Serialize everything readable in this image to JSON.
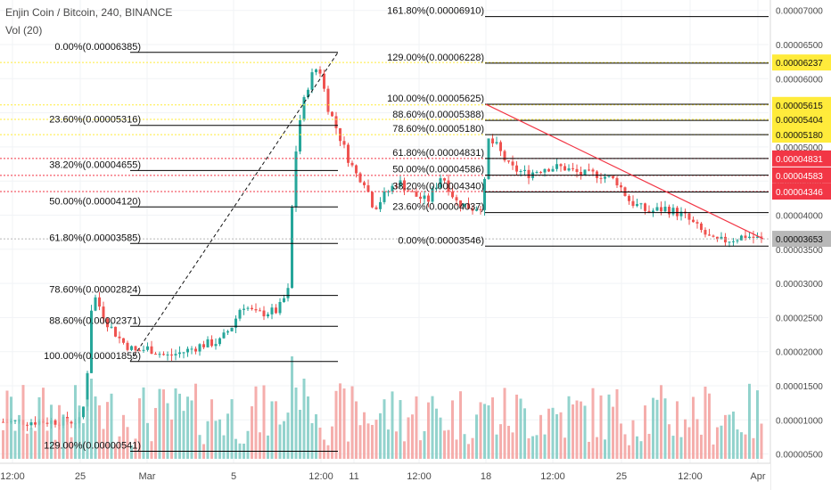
{
  "header": {
    "title": "Enjin Coin / Bitcoin, 240, BINANCE",
    "volume_label": "Vol (20)"
  },
  "chart_data": {
    "type": "candlestick",
    "symbol": "Enjin Coin / Bitcoin",
    "interval": "240",
    "exchange": "BINANCE",
    "ylim": [
      4.3e-06,
      7.2e-06
    ],
    "y_ticks": [
      5e-06,
      5.5e-06,
      6e-06,
      6.5e-06,
      7e-06,
      7.5e-06,
      8e-06,
      8.5e-06,
      9e-06,
      9.5e-06,
      1e-05,
      1.05e-05,
      1.1e-05,
      1.15e-05,
      1.2e-05,
      1.25e-05,
      1.3e-05,
      1.35e-05,
      1.4e-05,
      1.45e-05,
      1.5e-05,
      1.55e-05,
      1.6e-05,
      1.65e-05,
      1.7e-05,
      1.75e-05,
      1.8e-05,
      1.85e-05,
      1.9e-05,
      1.95e-05,
      2e-05,
      2.05e-05,
      2.1e-05,
      2.15e-05,
      2.2e-05,
      2.25e-05,
      2.3e-05,
      2.35e-05,
      2.4e-05,
      2.45e-05,
      2.5e-05,
      2.55e-05,
      2.6e-05,
      2.65e-05,
      2.7e-05,
      2.75e-05,
      2.8e-05,
      2.85e-05,
      2.9e-05,
      2.95e-05,
      3e-05,
      3.05e-05,
      3.1e-05,
      3.15e-05,
      3.2e-05,
      3.25e-05,
      3.3e-05,
      3.35e-05,
      3.4e-05,
      3.45e-05,
      3.5e-05,
      3.55e-05,
      3.6e-05,
      3.65e-05,
      3.7e-05,
      3.75e-05,
      3.8e-05,
      3.85e-05,
      3.9e-05,
      3.95e-05,
      4e-05,
      4.05e-05,
      4.1e-05,
      4.15e-05,
      4.2e-05,
      4.25e-05,
      4.3e-05,
      4.35e-05,
      4.4e-05,
      4.45e-05,
      4.5e-05,
      4.55e-05,
      4.6e-05,
      4.65e-05,
      4.7e-05,
      4.75e-05,
      4.8e-05,
      4.85e-05,
      4.9e-05,
      4.95e-05,
      5e-05,
      5.05e-05,
      5.1e-05,
      5.15e-05,
      5.2e-05,
      5.25e-05,
      5.3e-05,
      5.35e-05,
      5.4e-05,
      5.45e-05,
      5.5e-05,
      5.55e-05,
      5.6e-05,
      5.65e-05,
      5.7e-05,
      5.75e-05,
      5.8e-05,
      5.85e-05,
      5.9e-05,
      5.95e-05,
      6e-05,
      6.05e-05,
      6.1e-05,
      6.15e-05,
      6.2e-05,
      6.25e-05,
      6.3e-05,
      6.35e-05,
      6.4e-05,
      6.45e-05,
      6.5e-05,
      6.55e-05,
      6.6e-05,
      6.65e-05,
      6.7e-05,
      6.75e-05,
      6.8e-05,
      6.85e-05,
      6.9e-05,
      6.95e-05,
      7e-05
    ],
    "y_tick_labels": [
      "0.00000500",
      "0.00001000",
      "0.00001500",
      "0.00002000",
      "0.00002500",
      "0.00003000",
      "0.00003500",
      "0.00004000",
      "0.00004500",
      "0.00005000",
      "0.00005500",
      "0.00006000",
      "0.00006500",
      "0.00007000"
    ],
    "x_tick_labels": [
      "12:00",
      "25",
      "Mar",
      "5",
      "12:00",
      "11",
      "12:00",
      "18",
      "12:00",
      "25",
      "12:00",
      "Apr"
    ],
    "price_badges": [
      {
        "value": "0.00006237",
        "color": "#ffeb3b"
      },
      {
        "value": "0.00005615",
        "color": "#ffeb3b"
      },
      {
        "value": "0.00005404",
        "color": "#ffeb3b"
      },
      {
        "value": "0.00005180",
        "color": "#ffeb3b"
      },
      {
        "value": "0.00004831",
        "color": "#f23645"
      },
      {
        "value": "0.00004583",
        "color": "#f23645"
      },
      {
        "value": "0.00004346",
        "color": "#f23645"
      },
      {
        "value": "0.00003653",
        "color": "#b8b8b8"
      }
    ],
    "fib_left": {
      "levels": [
        {
          "label": "0.00%(0.00006385)",
          "price": 6.385e-05
        },
        {
          "label": "23.60%(0.00005316)",
          "price": 5.316e-05
        },
        {
          "label": "38.20%(0.00004655)",
          "price": 4.655e-05
        },
        {
          "label": "50.00%(0.00004120)",
          "price": 4.12e-05
        },
        {
          "label": "61.80%(0.00003585)",
          "price": 3.585e-05
        },
        {
          "label": "78.60%(0.00002824)",
          "price": 2.824e-05
        },
        {
          "label": "88.60%(0.00002371)",
          "price": 2.371e-05
        },
        {
          "label": "100.00%(0.00001855)",
          "price": 1.855e-05
        },
        {
          "label": "129.00%(0.00000541)",
          "price": 5.41e-06
        }
      ]
    },
    "fib_right": {
      "levels": [
        {
          "label": "161.80%(0.00006910)",
          "price": 6.91e-05
        },
        {
          "label": "129.00%(0.00006228)",
          "price": 6.228e-05
        },
        {
          "label": "100.00%(0.00005625)",
          "price": 5.625e-05
        },
        {
          "label": "88.60%(0.00005388)",
          "price": 5.388e-05
        },
        {
          "label": "78.60%(0.00005180)",
          "price": 5.18e-05
        },
        {
          "label": "61.80%(0.00004831)",
          "price": 4.831e-05
        },
        {
          "label": "50.00%(0.00004586)",
          "price": 4.586e-05
        },
        {
          "label": "38.20%(0.00004340)",
          "price": 4.34e-05
        },
        {
          "label": "23.60%(0.00004037)",
          "price": 4.037e-05
        },
        {
          "label": "0.00%(0.00003546)",
          "price": 3.546e-05
        }
      ]
    },
    "horizontal_rays": [
      {
        "price": 6.237e-05,
        "color": "#ffeb3b"
      },
      {
        "price": 5.615e-05,
        "color": "#ffeb3b"
      },
      {
        "price": 5.404e-05,
        "color": "#ffeb3b"
      },
      {
        "price": 5.18e-05,
        "color": "#ffeb3b"
      },
      {
        "price": 4.831e-05,
        "color": "#f23645"
      },
      {
        "price": 4.583e-05,
        "color": "#f23645"
      },
      {
        "price": 4.346e-05,
        "color": "#f23645"
      },
      {
        "price": 3.653e-05,
        "color": "#b8b8b8"
      }
    ],
    "trendline_from": 5.625e-05,
    "trendline_to": 3.653e-05,
    "colors": {
      "up": "#26a69a",
      "down": "#ef5350",
      "volume_up": "#80cbc4",
      "volume_down": "#f3a09d",
      "fib_line": "#000000",
      "trend": "#f23645",
      "axis_text": "#4a4a4a"
    },
    "volume_ticks": [
      5e-06,
      1e-05,
      1.5e-05
    ]
  }
}
